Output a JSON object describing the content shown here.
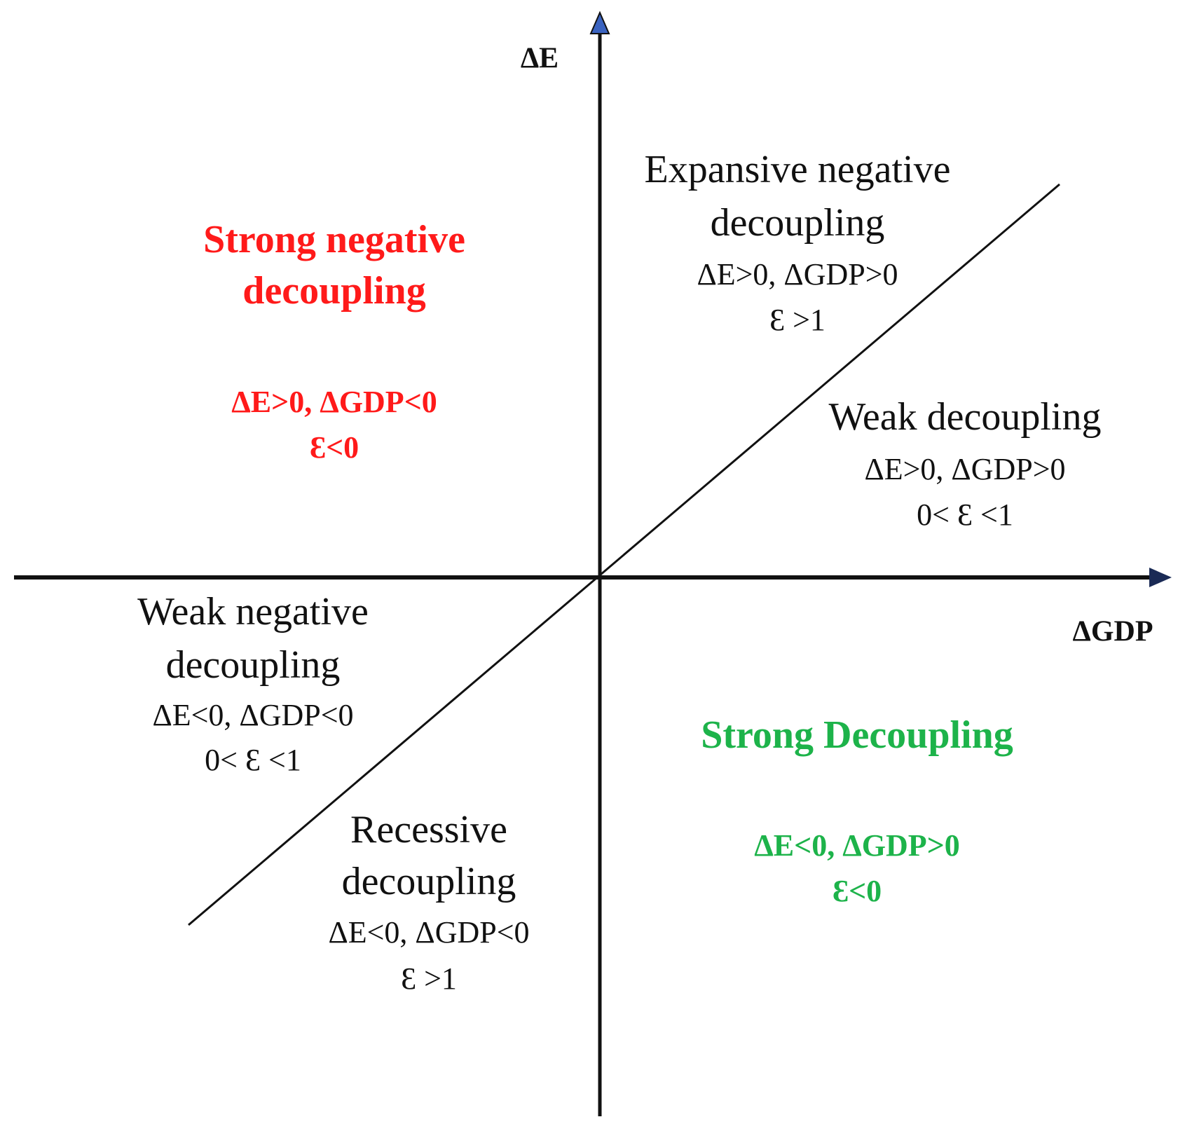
{
  "axes": {
    "y_label": "ΔE",
    "x_label": "ΔGDP"
  },
  "regions": [
    {
      "name": "Expansive negative decoupling",
      "lines": [
        "Expansive negative",
        "decoupling",
        "ΔE>0, ΔGDP>0",
        "Ɛ >1"
      ]
    },
    {
      "name": "Strong negative decoupling",
      "lines": [
        "Strong negative",
        "decoupling",
        "ΔE>0, ΔGDP<0",
        "Ɛ<0"
      ]
    },
    {
      "name": "Weak decoupling",
      "lines": [
        "Weak decoupling",
        "ΔE>0, ΔGDP>0",
        "0< Ɛ <1"
      ]
    },
    {
      "name": "Weak negative decoupling",
      "lines": [
        "Weak negative",
        "decoupling",
        "ΔE<0, ΔGDP<0",
        "0< Ɛ <1"
      ]
    },
    {
      "name": "Recessive decoupling",
      "lines": [
        "Recessive",
        "decoupling",
        "ΔE<0, ΔGDP<0",
        "Ɛ >1"
      ]
    },
    {
      "name": "Strong Decoupling",
      "lines": [
        "Strong Decoupling",
        "ΔE<0, ΔGDP>0",
        "Ɛ<0"
      ]
    }
  ]
}
